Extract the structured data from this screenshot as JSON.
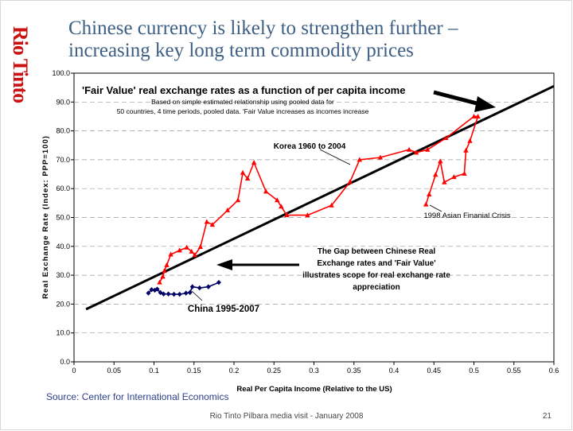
{
  "slide": {
    "logo": "Rio Tinto",
    "title_line1": "Chinese currency is likely to strengthen further –",
    "title_line2": "increasing key long term commodity prices",
    "source": "Source: Center for International Economics",
    "footer": "Rio Tinto Pilbara media visit - January 2008",
    "page_number": "21"
  },
  "chart_data": {
    "type": "line",
    "title": "'Fair Value' real exchange rates as a function of per capita income",
    "subtitle_line1": "Based on simple estimated relationship using pooled data for",
    "subtitle_line2": "50 countries, 4 time periods, pooled data. 'Fair Value increases as incomes increase",
    "xlabel": "Real Per Capita Income (Relative to the US)",
    "ylabel": "Real Exchange Rate (Index: PPP=100)",
    "xlim": [
      0,
      0.6
    ],
    "ylim": [
      0,
      100
    ],
    "x_ticks": [
      "0",
      "0.05",
      "0.1",
      "0.15",
      "0.2",
      "0.25",
      "0.3",
      "0.35",
      "0.4",
      "0.45",
      "0.5",
      "0.55",
      "0.6"
    ],
    "y_ticks": [
      "0.0",
      "10.0",
      "20.0",
      "30.0",
      "40.0",
      "50.0",
      "60.0",
      "70.0",
      "80.0",
      "90.0",
      "100.0"
    ],
    "grid": "horizontal dashed",
    "colors": {
      "fair_value": "#000000",
      "korea": "#ff0000",
      "china": "#000066",
      "title_text": "#3d5f85",
      "logo": "#cc1111",
      "source": "#2a3f8a"
    },
    "series": [
      {
        "kind": "fair-value-line",
        "x": [
          0.015,
          0.6
        ],
        "y": [
          18.2,
          95.5
        ]
      },
      {
        "kind": "korea",
        "marker": "triangle",
        "x": [
          0.107,
          0.111,
          0.113,
          0.116,
          0.121,
          0.132,
          0.141,
          0.147,
          0.151,
          0.158,
          0.166,
          0.173,
          0.192,
          0.205,
          0.211,
          0.217,
          0.225,
          0.24,
          0.254,
          0.259,
          0.266,
          0.292,
          0.322,
          0.345,
          0.357,
          0.383,
          0.419,
          0.428,
          0.442,
          0.465,
          0.5,
          0.505,
          0.495,
          0.49,
          0.488,
          0.475,
          0.463,
          0.458,
          0.452,
          0.444,
          0.44
        ],
        "y": [
          27.5,
          29.5,
          31.5,
          33.5,
          37.2,
          38.6,
          39.6,
          38.2,
          37.0,
          39.8,
          48.5,
          47.5,
          52.5,
          56.0,
          65.5,
          63.5,
          69.0,
          59.0,
          56.0,
          53.8,
          50.8,
          50.8,
          54.2,
          62.3,
          70.0,
          70.8,
          73.5,
          72.5,
          73.5,
          77.5,
          85.0,
          85.0,
          76.5,
          73.2,
          65.2,
          64.0,
          62.2,
          69.5,
          64.8,
          58.0,
          54.5
        ]
      },
      {
        "kind": "china",
        "marker": "diamond",
        "x": [
          0.093,
          0.097,
          0.101,
          0.104,
          0.108,
          0.112,
          0.118,
          0.125,
          0.132,
          0.14,
          0.145,
          0.148,
          0.157,
          0.168,
          0.181
        ],
        "y": [
          23.8,
          25.0,
          24.8,
          25.2,
          24.0,
          23.5,
          23.5,
          23.4,
          23.4,
          23.8,
          24.0,
          26.0,
          25.6,
          26.0,
          27.5
        ]
      }
    ],
    "annotations": {
      "korea_label": "Korea 1960 to 2004",
      "crisis_label": "1998 Asian Finanial Crisis",
      "gap_line1": "The Gap between Chinese Real",
      "gap_line2": "Exchange rates and 'Fair Value'",
      "gap_line3": "illustrates scope for real exchange rate",
      "gap_line4": "appreciation",
      "china_label": "China 1995-2007"
    }
  }
}
